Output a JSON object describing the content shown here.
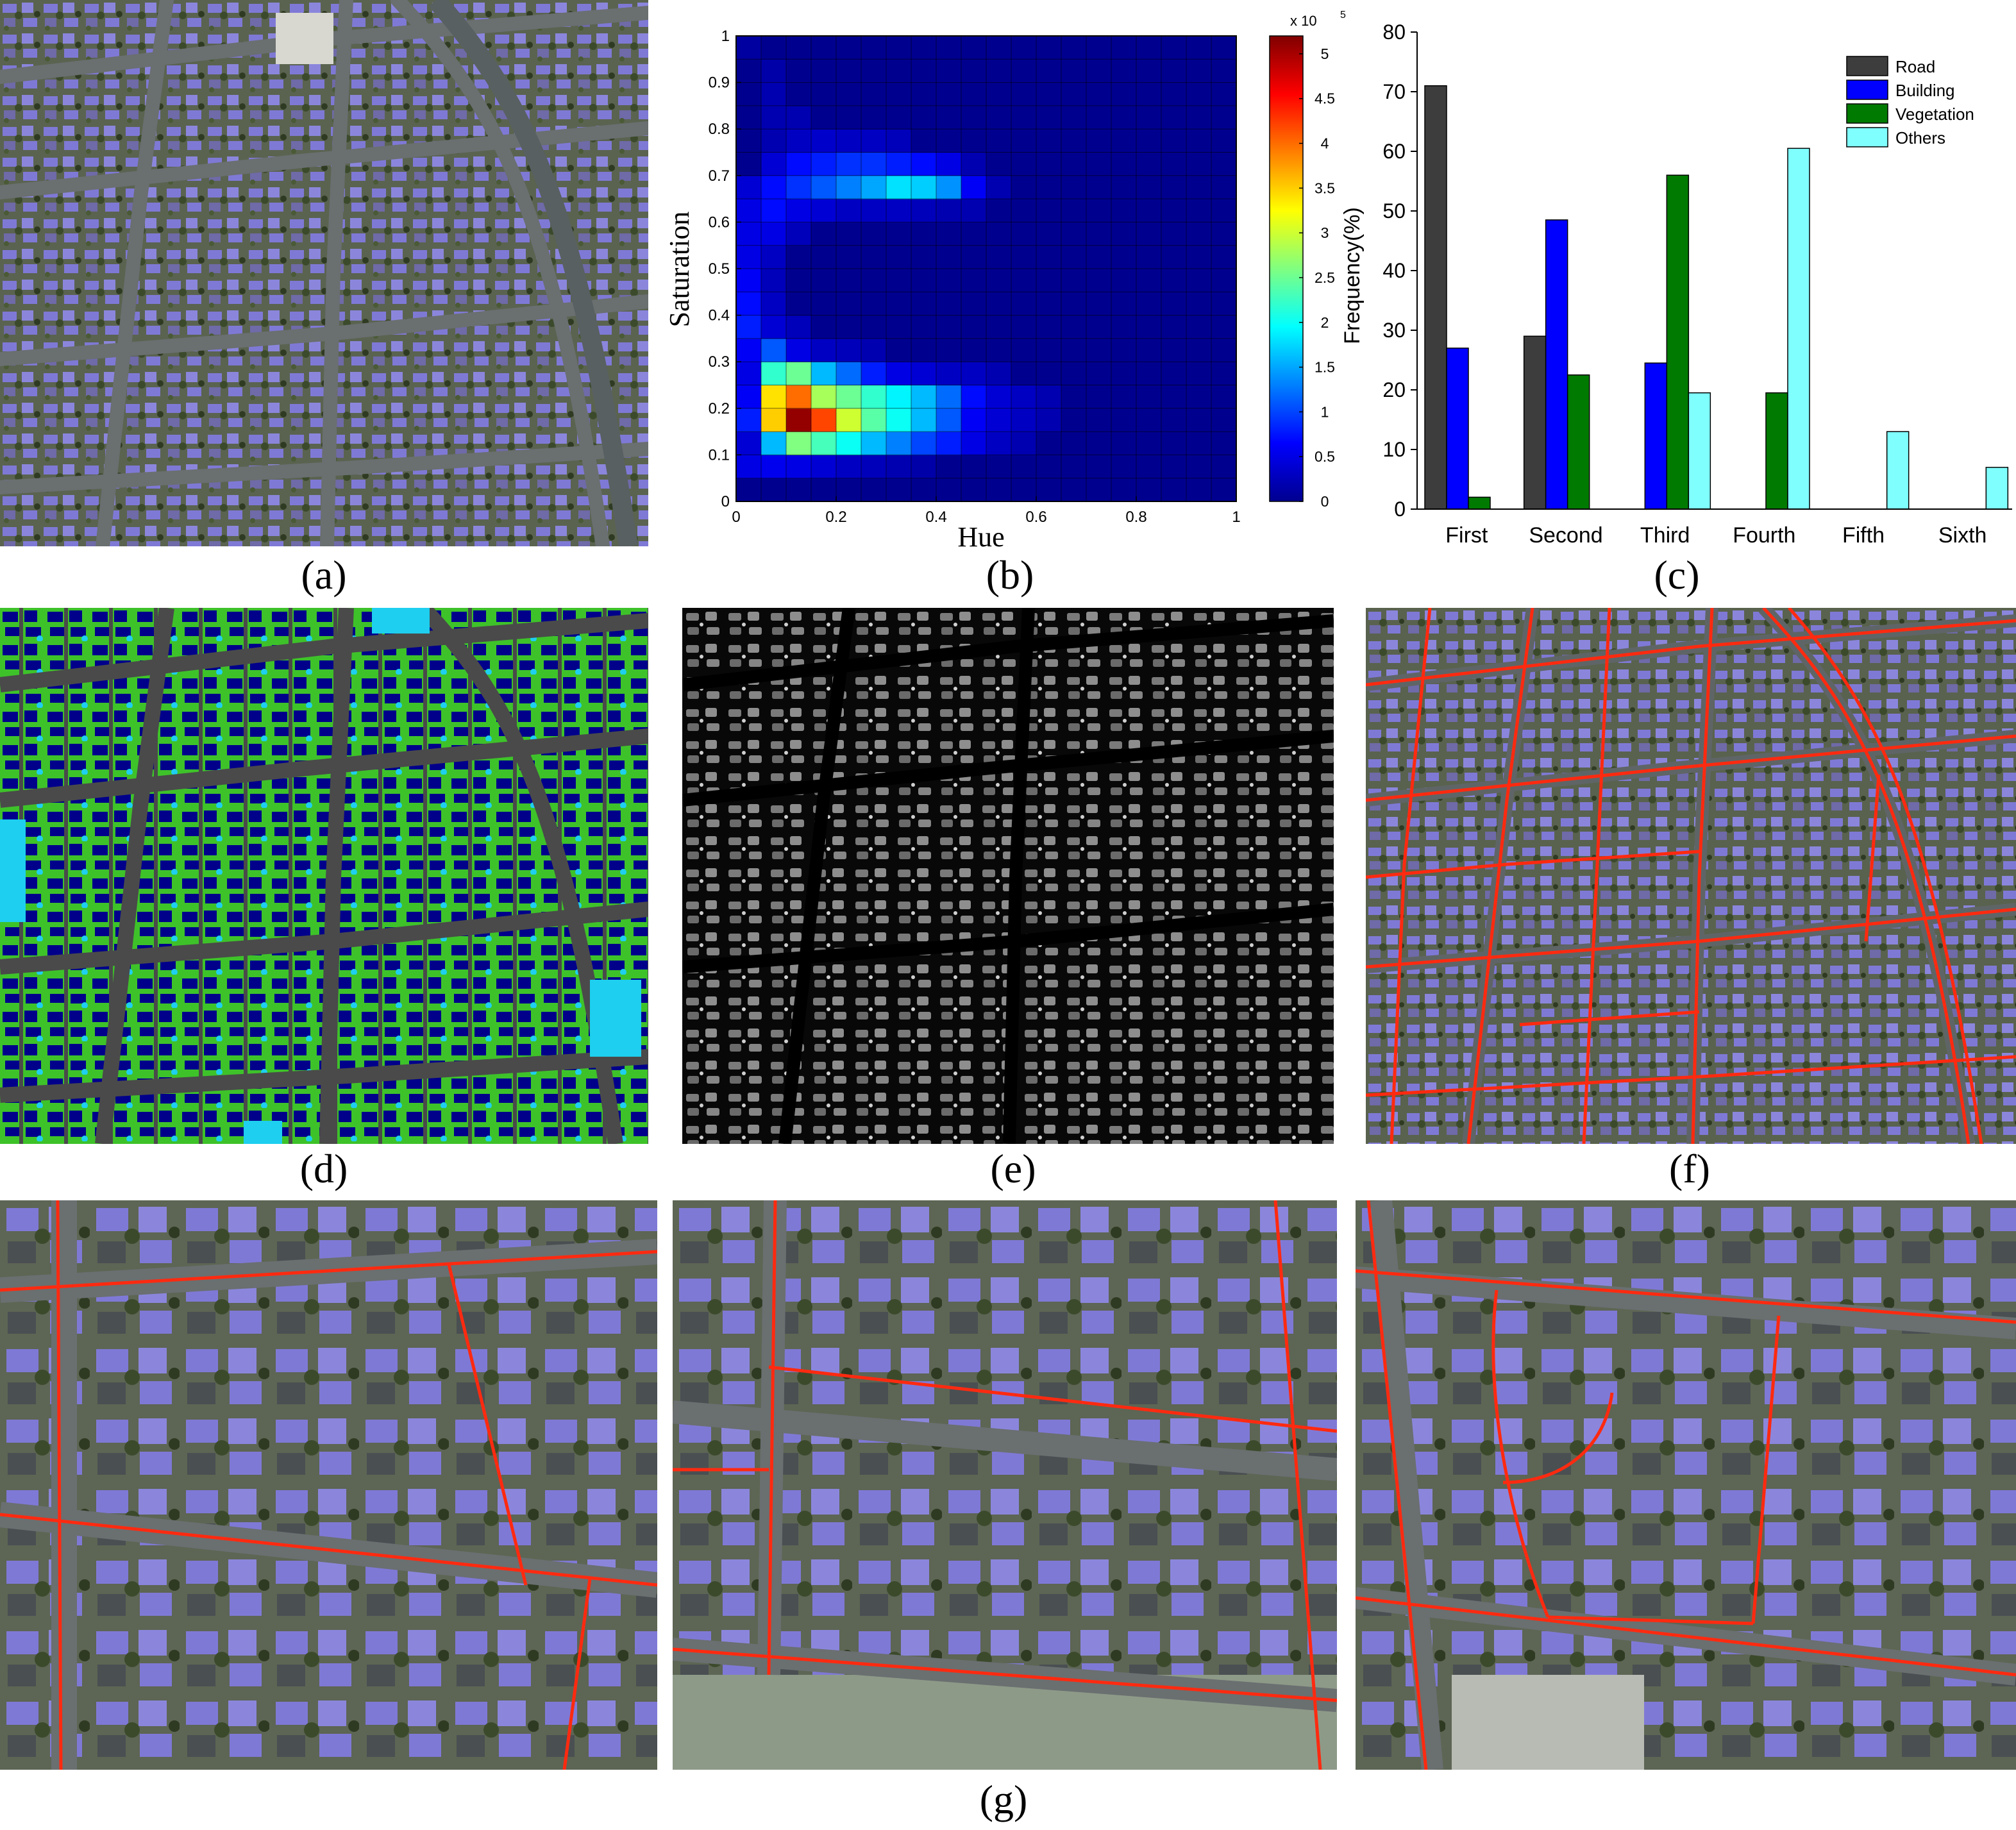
{
  "captions": {
    "a": "(a)",
    "b": "(b)",
    "c": "(c)",
    "d": "(d)",
    "e": "(e)",
    "f": "(f)",
    "g": "(g)"
  },
  "colors": {
    "road": "#3d3d3d",
    "building": "#0000ff",
    "vegetation": "#007a00",
    "others": "#80ffff",
    "roof": "#7f79d6",
    "tree": "#3c4a2c",
    "asphalt": "#5f6566",
    "overlay_red": "#ff2a10",
    "class_road": "#4a4a4a",
    "class_building": "#00008b",
    "class_vegetation": "#3ec22a",
    "class_others": "#1ecfef"
  },
  "chart_data": [
    {
      "type": "heatmap",
      "xlabel": "Hue",
      "ylabel": "Saturation",
      "xlim": [
        0,
        1
      ],
      "ylim": [
        0,
        1
      ],
      "x_ticks": [
        "0",
        "0.2",
        "0.4",
        "0.6",
        "0.8",
        "1"
      ],
      "y_ticks": [
        "0",
        "0.1",
        "0.2",
        "0.3",
        "0.4",
        "0.5",
        "0.6",
        "0.7",
        "0.8",
        "0.9",
        "1"
      ],
      "grid": true,
      "colorbar": {
        "range": [
          0,
          5.2
        ],
        "ticks": [
          "0",
          "0.5",
          "1",
          "1.5",
          "2",
          "2.5",
          "3",
          "3.5",
          "4",
          "4.5",
          "5"
        ],
        "multiplier": "x 10",
        "exponent": "5",
        "placement": "right"
      },
      "bins": 20,
      "cells": [
        [
          1,
          0,
          0.5
        ],
        [
          1,
          1,
          0.55
        ],
        [
          1,
          2,
          0.5
        ],
        [
          1,
          3,
          0.4
        ],
        [
          1,
          4,
          0.3
        ],
        [
          1,
          5,
          0.25
        ],
        [
          1,
          6,
          0.2
        ],
        [
          1,
          7,
          0.15
        ],
        [
          2,
          0,
          0.4
        ],
        [
          2,
          1,
          1.6
        ],
        [
          2,
          2,
          2.6
        ],
        [
          2,
          3,
          2.3
        ],
        [
          2,
          4,
          2.0
        ],
        [
          2,
          5,
          1.6
        ],
        [
          2,
          6,
          1.3
        ],
        [
          2,
          7,
          1.0
        ],
        [
          2,
          8,
          0.8
        ],
        [
          2,
          9,
          0.5
        ],
        [
          2,
          10,
          0.3
        ],
        [
          2,
          11,
          0.2
        ],
        [
          3,
          0,
          0.8
        ],
        [
          3,
          1,
          3.5
        ],
        [
          3,
          2,
          5.1
        ],
        [
          3,
          3,
          4.2
        ],
        [
          3,
          4,
          3.0
        ],
        [
          3,
          5,
          2.4
        ],
        [
          3,
          6,
          2.0
        ],
        [
          3,
          7,
          1.6
        ],
        [
          3,
          8,
          1.1
        ],
        [
          3,
          9,
          0.6
        ],
        [
          3,
          10,
          0.4
        ],
        [
          3,
          11,
          0.3
        ],
        [
          3,
          12,
          0.2
        ],
        [
          4,
          0,
          0.6
        ],
        [
          4,
          1,
          3.4
        ],
        [
          4,
          2,
          4.0
        ],
        [
          4,
          3,
          2.8
        ],
        [
          4,
          4,
          2.5
        ],
        [
          4,
          5,
          2.2
        ],
        [
          4,
          6,
          1.9
        ],
        [
          4,
          7,
          1.6
        ],
        [
          4,
          8,
          1.2
        ],
        [
          4,
          9,
          0.7
        ],
        [
          4,
          10,
          0.4
        ],
        [
          4,
          11,
          0.3
        ],
        [
          4,
          12,
          0.2
        ],
        [
          5,
          0,
          0.5
        ],
        [
          5,
          1,
          2.2
        ],
        [
          5,
          2,
          2.5
        ],
        [
          5,
          3,
          1.6
        ],
        [
          5,
          4,
          1.2
        ],
        [
          5,
          5,
          0.8
        ],
        [
          5,
          6,
          0.5
        ],
        [
          5,
          7,
          0.4
        ],
        [
          5,
          8,
          0.3
        ],
        [
          5,
          9,
          0.3
        ],
        [
          5,
          10,
          0.2
        ],
        [
          6,
          0,
          0.6
        ],
        [
          6,
          1,
          1.1
        ],
        [
          6,
          2,
          0.5
        ],
        [
          6,
          3,
          0.3
        ],
        [
          6,
          4,
          0.25
        ],
        [
          6,
          5,
          0.2
        ],
        [
          7,
          0,
          0.8
        ],
        [
          7,
          1,
          0.4
        ],
        [
          7,
          2,
          0.25
        ],
        [
          8,
          0,
          0.7
        ],
        [
          8,
          1,
          0.3
        ],
        [
          9,
          0,
          0.6
        ],
        [
          9,
          1,
          0.25
        ],
        [
          10,
          0,
          0.5
        ],
        [
          10,
          1,
          0.3
        ],
        [
          11,
          0,
          0.5
        ],
        [
          11,
          1,
          0.5
        ],
        [
          11,
          2,
          0.25
        ],
        [
          12,
          0,
          0.5
        ],
        [
          12,
          1,
          0.7
        ],
        [
          12,
          2,
          0.5
        ],
        [
          12,
          3,
          0.4
        ],
        [
          12,
          4,
          0.3
        ],
        [
          12,
          5,
          0.3
        ],
        [
          12,
          6,
          0.3
        ],
        [
          12,
          7,
          0.25
        ],
        [
          12,
          8,
          0.2
        ],
        [
          12,
          9,
          0.2
        ],
        [
          13,
          0,
          0.4
        ],
        [
          13,
          1,
          0.7
        ],
        [
          13,
          2,
          0.9
        ],
        [
          13,
          3,
          1.1
        ],
        [
          13,
          4,
          1.3
        ],
        [
          13,
          5,
          1.5
        ],
        [
          13,
          6,
          1.8
        ],
        [
          13,
          7,
          1.7
        ],
        [
          13,
          8,
          1.4
        ],
        [
          13,
          9,
          0.6
        ],
        [
          13,
          10,
          0.2
        ],
        [
          14,
          1,
          0.4
        ],
        [
          14,
          2,
          0.7
        ],
        [
          14,
          3,
          0.8
        ],
        [
          14,
          4,
          0.9
        ],
        [
          14,
          5,
          0.9
        ],
        [
          14,
          6,
          0.8
        ],
        [
          14,
          7,
          0.7
        ],
        [
          14,
          8,
          0.5
        ],
        [
          14,
          9,
          0.2
        ],
        [
          15,
          1,
          0.2
        ],
        [
          15,
          2,
          0.3
        ],
        [
          15,
          3,
          0.35
        ],
        [
          15,
          4,
          0.3
        ],
        [
          15,
          5,
          0.3
        ],
        [
          15,
          6,
          0.25
        ],
        [
          16,
          1,
          0.2
        ],
        [
          16,
          2,
          0.2
        ],
        [
          17,
          1,
          0.2
        ],
        [
          18,
          1,
          0.15
        ],
        [
          19,
          0,
          0.1
        ]
      ]
    },
    {
      "type": "bar",
      "xlabel": "",
      "ylabel": "Frequency(%)",
      "ylim": [
        0,
        80
      ],
      "y_ticks": [
        "0",
        "10",
        "20",
        "30",
        "40",
        "50",
        "60",
        "70",
        "80"
      ],
      "categories": [
        "First",
        "Second",
        "Third",
        "Fourth",
        "Fifth",
        "Sixth"
      ],
      "legend_placement": "top-right",
      "series": [
        {
          "name": "Road",
          "color": "#3d3d3d",
          "values": [
            71,
            29,
            0,
            0,
            0,
            0
          ]
        },
        {
          "name": "Building",
          "color": "#0000ff",
          "values": [
            27,
            48.5,
            24.5,
            0,
            0,
            0
          ]
        },
        {
          "name": "Vegetation",
          "color": "#007a00",
          "values": [
            2,
            22.5,
            56,
            19.5,
            0,
            0
          ]
        },
        {
          "name": "Others",
          "color": "#80ffff",
          "values": [
            0,
            0,
            19.5,
            60.5,
            13,
            7
          ]
        }
      ]
    }
  ]
}
